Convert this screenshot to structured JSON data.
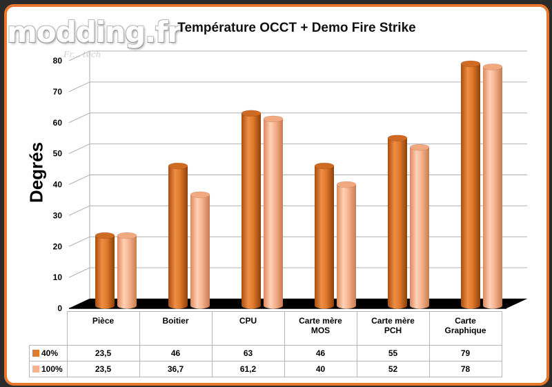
{
  "watermark": {
    "logo": "modding.fr",
    "tagline": "Fr... tech"
  },
  "colors": {
    "series_40": "#e07a2c",
    "series_100": "#f6b38e",
    "floor": "#000000",
    "border": "#e8772e"
  },
  "chart_data": {
    "type": "bar",
    "title": "Température OCCT + Demo Fire Strike",
    "ylabel": "Degrés",
    "xlabel": "",
    "ylim": [
      0,
      80
    ],
    "yticks": [
      0,
      10,
      20,
      30,
      40,
      50,
      60,
      70,
      80
    ],
    "grid": true,
    "categories": [
      "Pièce",
      "Boitier",
      "CPU",
      "Carte mère MOS",
      "Carte mère PCH",
      "Carte Graphique"
    ],
    "categories_display": [
      [
        "Pièce"
      ],
      [
        "Boitier"
      ],
      [
        "CPU"
      ],
      [
        "Carte mère",
        "MOS"
      ],
      [
        "Carte mère",
        "PCH"
      ],
      [
        "Carte",
        "Graphique"
      ]
    ],
    "series": [
      {
        "name": "40%",
        "values": [
          23.5,
          46,
          63,
          46,
          55,
          79
        ],
        "labels": [
          "23,5",
          "46",
          "63",
          "46",
          "55",
          "79"
        ]
      },
      {
        "name": "100%",
        "values": [
          23.5,
          36.7,
          61.2,
          40,
          52,
          78
        ],
        "labels": [
          "23,5",
          "36,7",
          "61,2",
          "40",
          "52",
          "78"
        ]
      }
    ],
    "legend": "data-table"
  }
}
